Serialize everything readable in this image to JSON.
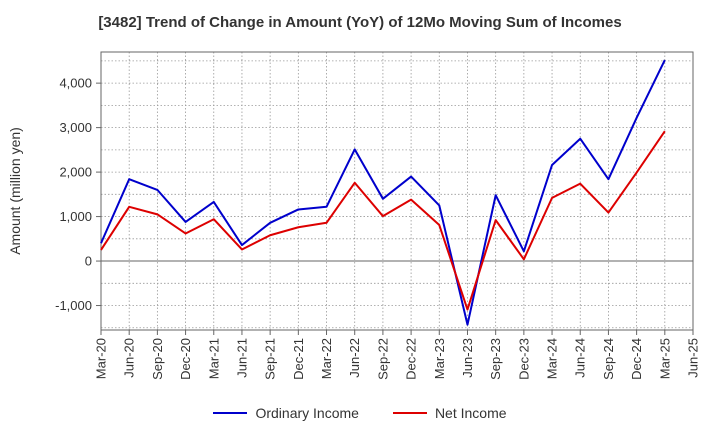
{
  "chart_data": {
    "type": "line",
    "title": "[3482]  Trend of Change in Amount (YoY) of 12Mo Moving Sum of Incomes",
    "ylabel": "Amount (million yen)",
    "xlabel": "",
    "ylim": [
      -1550,
      4700
    ],
    "yticks": [
      -1000,
      0,
      1000,
      2000,
      3000,
      4000
    ],
    "ytick_labels": [
      "-1,000",
      "0",
      "1,000",
      "2,000",
      "3,000",
      "4,000"
    ],
    "x_tick_labels": [
      "Mar-20",
      "Jun-20",
      "Sep-20",
      "Dec-20",
      "Mar-21",
      "Jun-21",
      "Sep-21",
      "Dec-21",
      "Mar-22",
      "Jun-22",
      "Sep-22",
      "Dec-22",
      "Mar-23",
      "Jun-23",
      "Sep-23",
      "Dec-23",
      "Mar-24",
      "Jun-24",
      "Sep-24",
      "Dec-24",
      "Mar-25",
      "Jun-25"
    ],
    "grid": true,
    "legend_position": "bottom",
    "series": [
      {
        "name": "Ordinary Income",
        "color": "#0000cc",
        "values": [
          400,
          1840,
          1600,
          880,
          1330,
          360,
          860,
          1160,
          1220,
          2510,
          1400,
          1900,
          1250,
          -1430,
          1480,
          220,
          2160,
          2750,
          1840,
          3220,
          4520
        ]
      },
      {
        "name": "Net Income",
        "color": "#dd0000",
        "values": [
          250,
          1220,
          1050,
          620,
          940,
          260,
          580,
          760,
          860,
          1760,
          1010,
          1380,
          810,
          -1090,
          920,
          40,
          1420,
          1740,
          1090,
          1990,
          2920
        ]
      }
    ]
  }
}
